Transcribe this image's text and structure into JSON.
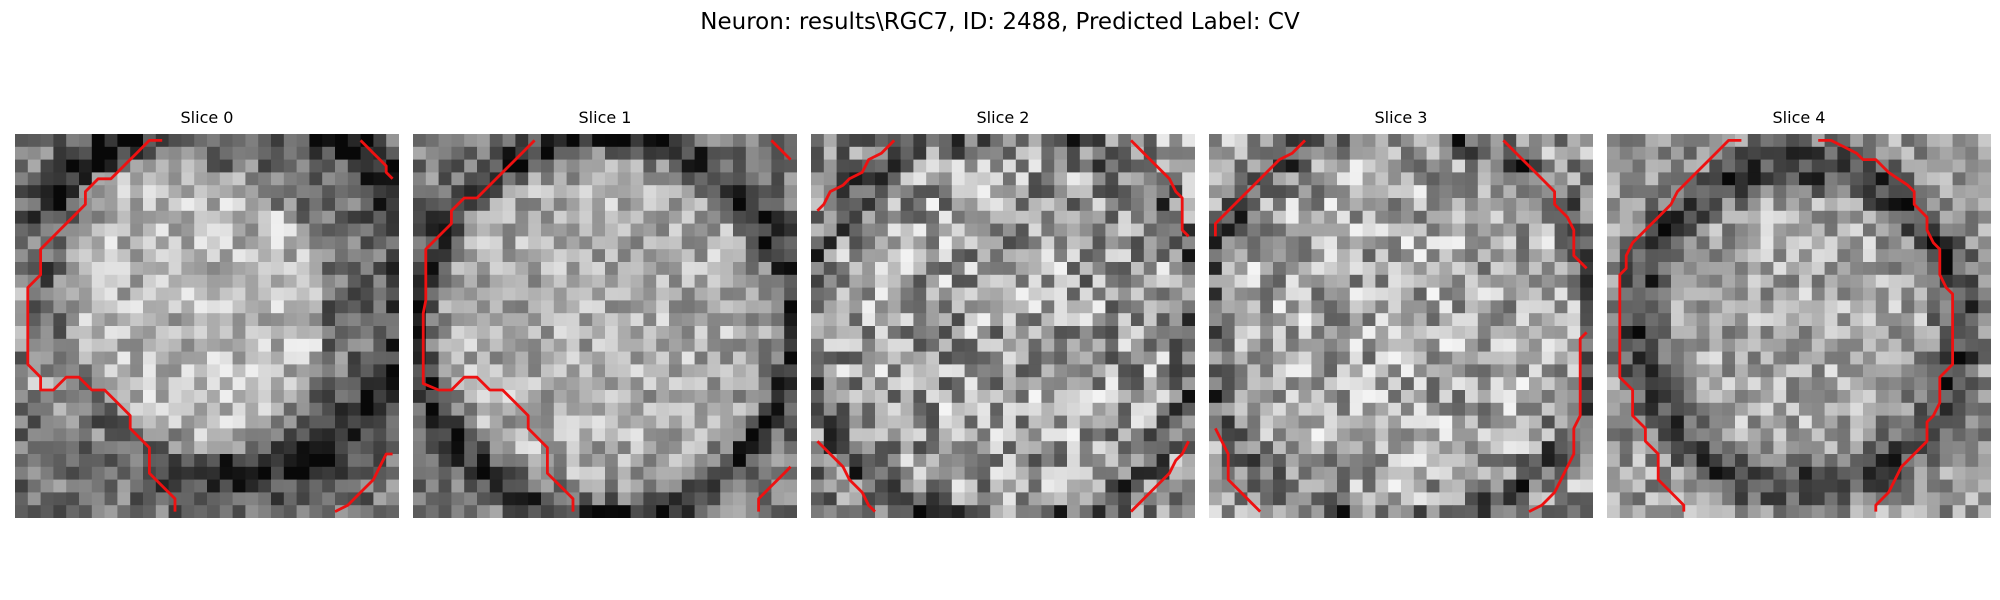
{
  "figure": {
    "title": "Neuron: results\\RGC7, ID: 2488, Predicted Label: CV"
  },
  "panels": [
    {
      "title": "Slice 0"
    },
    {
      "title": "Slice 1"
    },
    {
      "title": "Slice 2"
    },
    {
      "title": "Slice 3"
    },
    {
      "title": "Slice 4"
    }
  ],
  "colors": {
    "contour": "#ee1111",
    "background": "#ffffff"
  },
  "image": {
    "colormap": "grayscale",
    "type": "microscopy-slice"
  }
}
